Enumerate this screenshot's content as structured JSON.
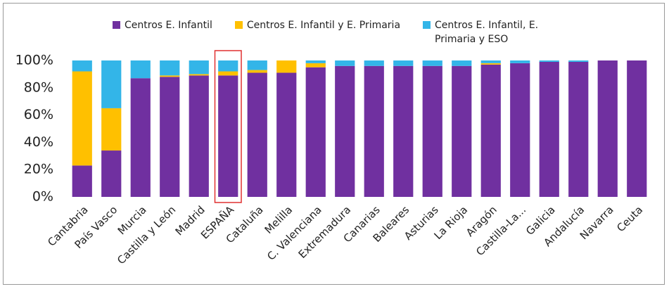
{
  "chart_data": {
    "type": "stacked_bar",
    "categories": [
      "Cantabria",
      "País Vasco",
      "Murcia",
      "Castilla y León",
      "Madrid",
      "ESPAÑA",
      "Cataluña",
      "Melilla",
      "C. Valenciana",
      "Extremadura",
      "Canarias",
      "Baleares",
      "Asturias",
      "La Rioja",
      "Aragón",
      "Castilla-La...",
      "Galicia",
      "Andalucía",
      "Navarra",
      "Ceuta"
    ],
    "series": [
      {
        "name": "Centros E. Infantil",
        "color": "#7030a0",
        "values": [
          23,
          34,
          87,
          88,
          89,
          89,
          91,
          91,
          95,
          96,
          96,
          96,
          96,
          96,
          97,
          98,
          99,
          99,
          100,
          100
        ]
      },
      {
        "name": "Centros E. Infantil y E. Primaria",
        "color": "#ffc000",
        "values": [
          69,
          31,
          0,
          1,
          1,
          3,
          2,
          9,
          3,
          0,
          0,
          0,
          0,
          0,
          1,
          0,
          0,
          0,
          0,
          0
        ]
      },
      {
        "name": "Centros E. Infantil, E. Primaria y ESO",
        "color": "#33b5e8",
        "values": [
          8,
          35,
          13,
          11,
          10,
          8,
          7,
          0,
          2,
          4,
          4,
          4,
          4,
          4,
          2,
          2,
          1,
          1,
          0,
          0
        ]
      }
    ],
    "ylim": [
      0,
      100
    ],
    "yticks": [
      {
        "value": 0,
        "label": "0%"
      },
      {
        "value": 20,
        "label": "20%"
      },
      {
        "value": 40,
        "label": "40%"
      },
      {
        "value": 60,
        "label": "60%"
      },
      {
        "value": 80,
        "label": "80%"
      },
      {
        "value": 100,
        "label": "100%"
      }
    ],
    "grid": false,
    "legend": "top",
    "highlighted_category": 5,
    "highlight_color": "#e03030"
  }
}
